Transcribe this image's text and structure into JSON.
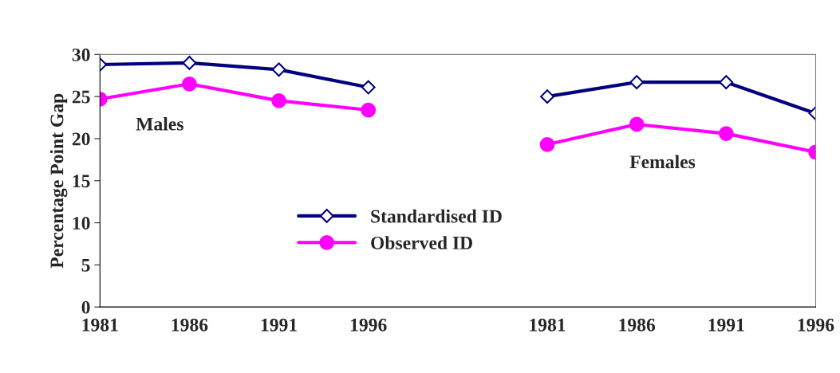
{
  "chart_data": {
    "type": "line",
    "ylabel": "Percentage Point Gap",
    "categories": [
      "1981",
      "1986",
      "1991",
      "1996",
      null,
      "1981",
      "1986",
      "1991",
      "1996"
    ],
    "series": [
      {
        "name": "Standardised ID",
        "color": "#000080",
        "marker": "diamond",
        "values": [
          28.8,
          29.0,
          28.2,
          26.1,
          null,
          25.0,
          26.7,
          26.7,
          23.0
        ]
      },
      {
        "name": "Observed ID",
        "color": "#ff00ff",
        "marker": "circle",
        "values": [
          24.7,
          26.5,
          24.5,
          23.4,
          null,
          19.3,
          21.7,
          20.6,
          18.4
        ]
      }
    ],
    "annotations": [
      "Males",
      "Females"
    ],
    "ylim": [
      0,
      30
    ],
    "yticks": [
      0,
      5,
      10,
      15,
      20,
      25,
      30
    ],
    "grid": false,
    "legend": "center"
  }
}
